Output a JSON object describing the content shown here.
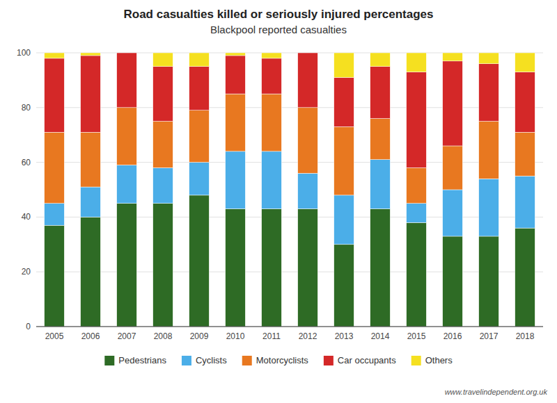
{
  "chart_data": {
    "type": "bar",
    "stacked": true,
    "title": "Road casualties killed or seriously injured percentages",
    "subtitle": "Blackpool reported casualties",
    "annotations": [
      "www.travelindependent.org.uk"
    ],
    "categories": [
      "2005",
      "2006",
      "2007",
      "2008",
      "2009",
      "2010",
      "2011",
      "2012",
      "2013",
      "2014",
      "2015",
      "2016",
      "2017",
      "2018"
    ],
    "series": [
      {
        "name": "Pedestrians",
        "color": "#2e6b25",
        "values": [
          37,
          40,
          45,
          45,
          48,
          43,
          43,
          43,
          30,
          43,
          38,
          33,
          33,
          36
        ]
      },
      {
        "name": "Cyclists",
        "color": "#4baee8",
        "values": [
          8,
          11,
          14,
          13,
          12,
          21,
          21,
          13,
          18,
          18,
          7,
          17,
          21,
          19
        ]
      },
      {
        "name": "Motorcyclists",
        "color": "#e87820",
        "values": [
          26,
          20,
          21,
          17,
          19,
          21,
          21,
          24,
          25,
          15,
          13,
          16,
          21,
          16
        ]
      },
      {
        "name": "Car occupants",
        "color": "#d42828",
        "values": [
          27,
          28,
          20,
          20,
          16,
          14,
          13,
          20,
          18,
          19,
          35,
          31,
          21,
          22
        ]
      },
      {
        "name": "Others",
        "color": "#f5e020",
        "values": [
          2,
          1,
          0,
          5,
          5,
          1,
          2,
          0,
          9,
          5,
          7,
          3,
          4,
          7
        ]
      }
    ],
    "ylim": [
      0,
      100
    ],
    "yticks": [
      0,
      20,
      40,
      60,
      80,
      100
    ],
    "grid": true,
    "legend": "bottom"
  }
}
